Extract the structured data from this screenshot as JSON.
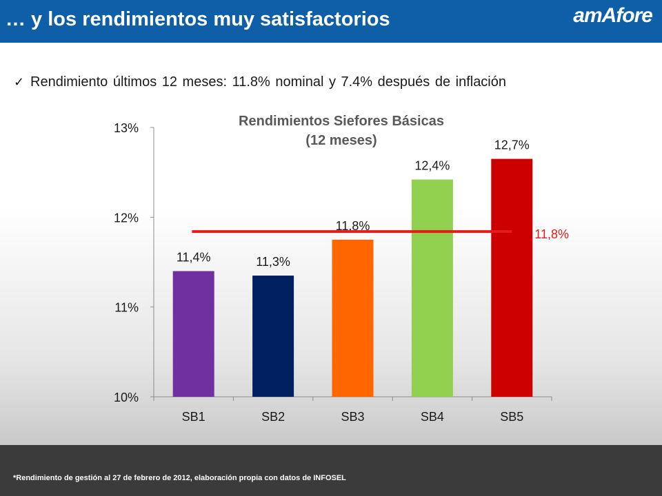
{
  "header": {
    "title": "… y los rendimientos muy satisfactorios",
    "logo_text": "amAfore",
    "background_color": "#0f5fa8"
  },
  "bullet": {
    "icon": "checkmark-icon",
    "text": "Rendimiento últimos 12 meses: 11.8% nominal y 7.4% después de inflación"
  },
  "chart_data": {
    "type": "bar",
    "title": "Rendimientos Siefores Básicas",
    "subtitle": "(12 meses)",
    "categories": [
      "SB1",
      "SB2",
      "SB3",
      "SB4",
      "SB5"
    ],
    "values": [
      11.4,
      11.35,
      11.75,
      12.42,
      12.65
    ],
    "data_labels": [
      "11,4%",
      "11,3%",
      "11,8%",
      "12,4%",
      "12,7%"
    ],
    "colors": [
      "#7030a0",
      "#002060",
      "#ff6600",
      "#92d050",
      "#cc0000"
    ],
    "ylim": [
      10,
      13
    ],
    "yticks": [
      10,
      11,
      12,
      13
    ],
    "ytick_labels": [
      "10%",
      "11%",
      "12%",
      "13%"
    ],
    "reference_line": {
      "value": 11.84,
      "label": "11,8%",
      "color": "#e31b1b"
    },
    "grid": false,
    "legend": "none"
  },
  "footer": {
    "note": "*Rendimiento de gestión al 27 de febrero de 2012, elaboración propia con datos de INFOSEL",
    "background_color": "#3b3b3b"
  }
}
